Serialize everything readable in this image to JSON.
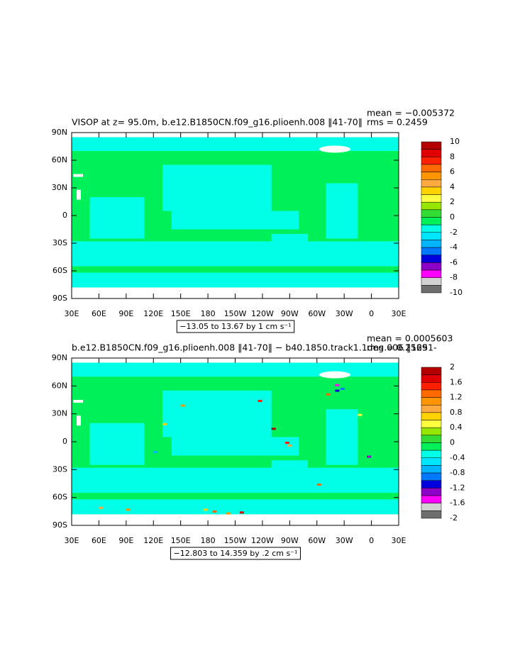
{
  "chart_data": [
    {
      "type": "contour",
      "title": "VISOP at z=  95.0m, b.e12.B1850CN.f09_g16.plioenh.008 ‖41-70‖",
      "mean_label": "mean = −0.005372",
      "rms_label": "rms = 0.2459",
      "info": "−13.05 to 13.67 by 1 cm s⁻¹",
      "xlim": [
        30,
        390
      ],
      "xticks": [
        {
          "value": 30,
          "label": "30E"
        },
        {
          "value": 60,
          "label": "60E"
        },
        {
          "value": 90,
          "label": "90E"
        },
        {
          "value": 120,
          "label": "120E"
        },
        {
          "value": 150,
          "label": "150E"
        },
        {
          "value": 180,
          "label": "180"
        },
        {
          "value": 210,
          "label": "150W"
        },
        {
          "value": 240,
          "label": "120W"
        },
        {
          "value": 270,
          "label": "90W"
        },
        {
          "value": 300,
          "label": "60W"
        },
        {
          "value": 330,
          "label": "30W"
        },
        {
          "value": 360,
          "label": "0"
        },
        {
          "value": 390,
          "label": "30E"
        }
      ],
      "ylim": [
        -90,
        90
      ],
      "yticks": [
        {
          "value": 90,
          "label": "90N"
        },
        {
          "value": 60,
          "label": "60N"
        },
        {
          "value": 30,
          "label": "30N"
        },
        0,
        {
          "value": -30,
          "label": "30S"
        },
        {
          "value": -60,
          "label": "60S"
        },
        {
          "value": -90,
          "label": "90S"
        }
      ],
      "clim": [
        -10,
        10
      ],
      "cticks": [
        10,
        8,
        6,
        4,
        2,
        0,
        -2,
        -4,
        -6,
        -8,
        -10
      ],
      "colors": [
        "#b40000",
        "#e00000",
        "#ff2000",
        "#ff6a00",
        "#ff9500",
        "#ffaa40",
        "#ffd200",
        "#ffff40",
        "#96e600",
        "#32dc32",
        "#00f05a",
        "#00ffe6",
        "#00e6ff",
        "#00b4ff",
        "#0078ff",
        "#0000dc",
        "#8c00c8",
        "#ff00ff",
        "#d2d2d2",
        "#6e6e6e"
      ]
    },
    {
      "type": "contour",
      "title": "b.e12.B1850CN.f09_g16.plioenh.008 ‖41-70‖ − b40.1850.track1.1deg.006 ‖1251-",
      "mean_label": "mean = 0.0005603",
      "rms_label": "rms = 0.2569",
      "info": "−12.803 to 14.359 by .2 cm s⁻¹",
      "xlim": [
        30,
        390
      ],
      "xticks": [
        {
          "value": 30,
          "label": "30E"
        },
        {
          "value": 60,
          "label": "60E"
        },
        {
          "value": 90,
          "label": "90E"
        },
        {
          "value": 120,
          "label": "120E"
        },
        {
          "value": 150,
          "label": "150E"
        },
        {
          "value": 180,
          "label": "180"
        },
        {
          "value": 210,
          "label": "150W"
        },
        {
          "value": 240,
          "label": "120W"
        },
        {
          "value": 270,
          "label": "90W"
        },
        {
          "value": 300,
          "label": "60W"
        },
        {
          "value": 330,
          "label": "30W"
        },
        {
          "value": 360,
          "label": "0"
        },
        {
          "value": 390,
          "label": "30E"
        }
      ],
      "ylim": [
        -90,
        90
      ],
      "yticks": [
        {
          "value": 90,
          "label": "90N"
        },
        {
          "value": 60,
          "label": "60N"
        },
        {
          "value": 30,
          "label": "30N"
        },
        0,
        {
          "value": -30,
          "label": "30S"
        },
        {
          "value": -60,
          "label": "60S"
        },
        {
          "value": -90,
          "label": "90S"
        }
      ],
      "clim": [
        -2,
        2
      ],
      "cticks": [
        2,
        1.6,
        1.2,
        0.8,
        0.4,
        0,
        -0.4,
        -0.8,
        -1.2,
        -1.6,
        -2
      ],
      "colors": [
        "#b40000",
        "#e00000",
        "#ff2000",
        "#ff6a00",
        "#ff9500",
        "#ffaa40",
        "#ffd200",
        "#ffff40",
        "#96e600",
        "#32dc32",
        "#00f05a",
        "#00ffe6",
        "#00e6ff",
        "#00b4ff",
        "#0078ff",
        "#0000dc",
        "#8c00c8",
        "#ff00ff",
        "#d2d2d2",
        "#6e6e6e"
      ]
    }
  ]
}
